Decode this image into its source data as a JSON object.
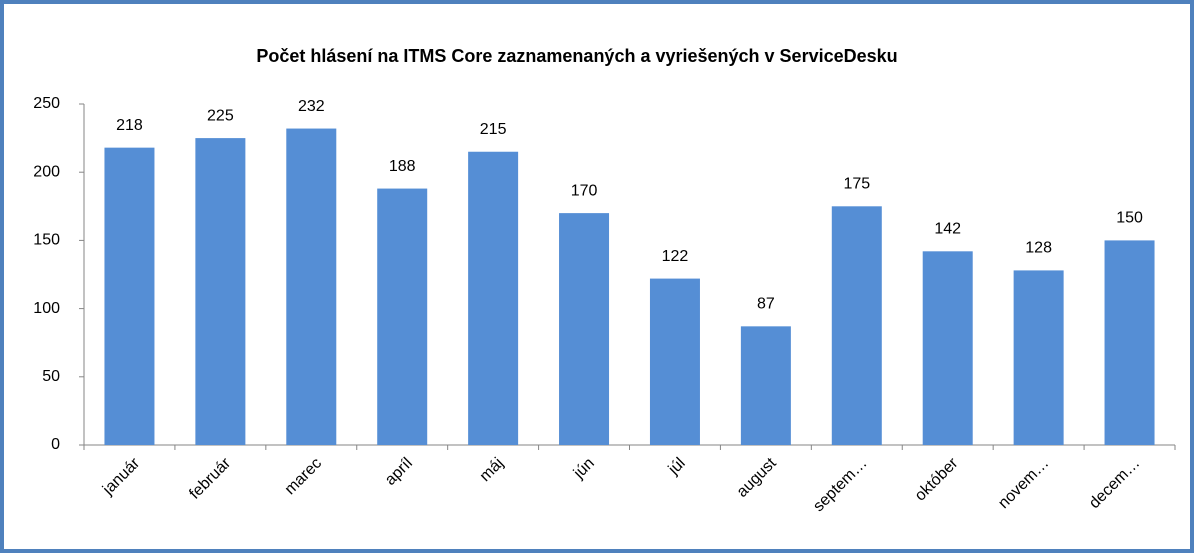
{
  "chart_data": {
    "type": "bar",
    "title": "Počet hlásení na ITMS Core zaznamenaných a vyriešených v ServiceDesku",
    "categories": [
      "január",
      "február",
      "marec",
      "apríl",
      "máj",
      "jún",
      "júl",
      "august",
      "septem…",
      "október",
      "novem…",
      "decem…"
    ],
    "values": [
      218,
      225,
      232,
      188,
      215,
      170,
      122,
      87,
      175,
      142,
      128,
      150
    ],
    "color": "#558ed5",
    "ylim": [
      0,
      250
    ],
    "yticks": [
      0,
      50,
      100,
      150,
      200,
      250
    ],
    "grid": false
  }
}
